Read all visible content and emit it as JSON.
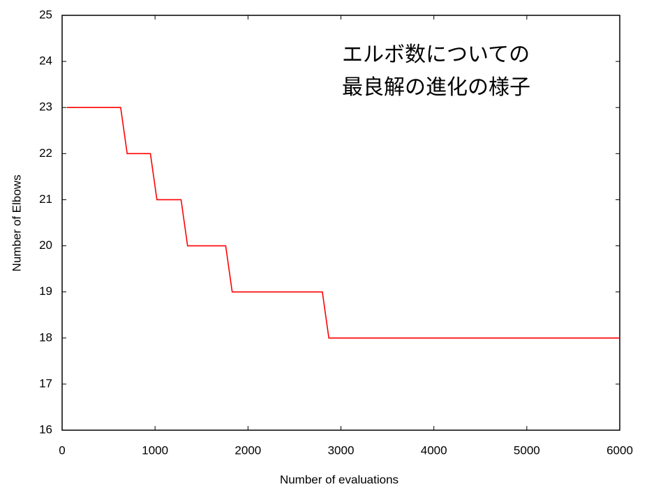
{
  "chart_data": {
    "type": "line",
    "annotation": [
      "エルボ数についての",
      "最良解の進化の様子"
    ],
    "x_label": "Number of evaluations",
    "y_label": "Number of Elbows",
    "x": [
      50,
      630,
      700,
      950,
      1020,
      1280,
      1350,
      1760,
      1830,
      2800,
      2870,
      6000
    ],
    "series": [
      {
        "color": "#ff0000",
        "values": [
          23,
          23,
          22,
          22,
          21,
          21,
          20,
          20,
          19,
          19,
          18,
          18
        ]
      }
    ],
    "xlim": [
      0,
      6000
    ],
    "xticks": [
      0,
      1000,
      2000,
      3000,
      4000,
      5000,
      6000
    ],
    "ylim": [
      16,
      25
    ],
    "yticks": [
      16,
      17,
      18,
      19,
      20,
      21,
      22,
      23,
      24,
      25
    ]
  }
}
